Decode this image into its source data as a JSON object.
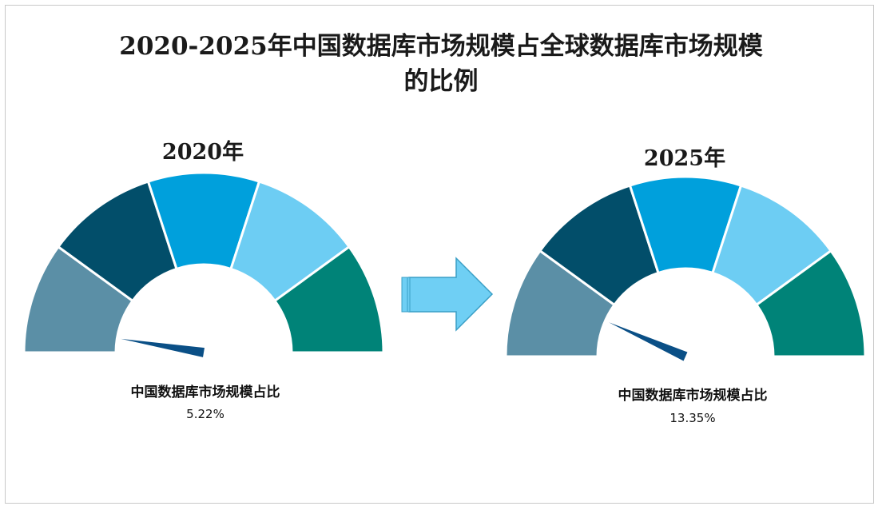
{
  "title_line1": "2020-2025年中国数据库市场规模占全球数据库市场规模",
  "title_line2": "的比例",
  "segment_colors": [
    "#5b8fa6",
    "#024e6a",
    "#00a0dc",
    "#6dcdf3",
    "#008378"
  ],
  "needle_color": "#0a4f86",
  "arrow_color": "#6fcff4",
  "chart_data": [
    {
      "type": "gauge",
      "title": "2020年",
      "label": "中国数据库市场规模占比",
      "value_text": "5.22%",
      "value": 5.22,
      "range": [
        0,
        100
      ]
    },
    {
      "type": "gauge",
      "title": "2025年",
      "label": "中国数据库市场规模占比",
      "value_text": "13.35%",
      "value": 13.35,
      "range": [
        0,
        100
      ]
    }
  ]
}
